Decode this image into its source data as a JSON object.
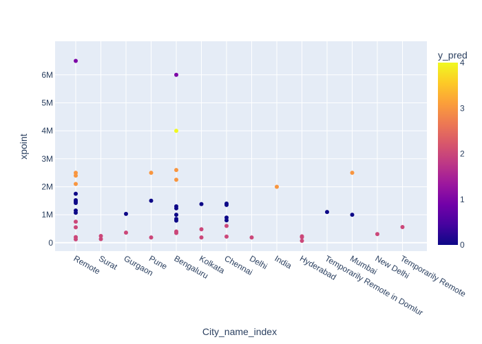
{
  "chart_data": {
    "type": "scatter",
    "title": "",
    "xlabel": "City_name_index",
    "ylabel": "xpoint",
    "categories": [
      "Remote",
      "Surat",
      "Gurgaon",
      "Pune",
      "Bengaluru",
      "Kolkata",
      "Chennai",
      "Delhi",
      "India",
      "Hyderabad",
      "Temporarily Remote in Domlur",
      "Mumbai",
      "New Delhi",
      "Temporarily Remote"
    ],
    "y_ticks": [
      0,
      1000000,
      2000000,
      3000000,
      4000000,
      5000000,
      6000000
    ],
    "y_tick_labels": [
      "0",
      "1M",
      "2M",
      "3M",
      "4M",
      "5M",
      "6M"
    ],
    "ylim": [
      -300000,
      7200000
    ],
    "grid": true,
    "colorbar": {
      "title": "y_pred",
      "range": [
        0,
        4
      ],
      "ticks": [
        0,
        1,
        2,
        3,
        4
      ],
      "colorscale": [
        "#0d0887",
        "#46039f",
        "#7201a8",
        "#9c179e",
        "#bd3786",
        "#d8576b",
        "#ed7953",
        "#fb9f3a",
        "#fdca26",
        "#f0f921"
      ]
    },
    "points": [
      {
        "x": "Remote",
        "y": 6500000,
        "c": 1
      },
      {
        "x": "Remote",
        "y": 2500000,
        "c": 3
      },
      {
        "x": "Remote",
        "y": 2400000,
        "c": 3
      },
      {
        "x": "Remote",
        "y": 2100000,
        "c": 3
      },
      {
        "x": "Remote",
        "y": 1750000,
        "c": 0
      },
      {
        "x": "Remote",
        "y": 1520000,
        "c": 0
      },
      {
        "x": "Remote",
        "y": 1470000,
        "c": 0
      },
      {
        "x": "Remote",
        "y": 1420000,
        "c": 0
      },
      {
        "x": "Remote",
        "y": 1150000,
        "c": 0
      },
      {
        "x": "Remote",
        "y": 1070000,
        "c": 0
      },
      {
        "x": "Remote",
        "y": 750000,
        "c": 2
      },
      {
        "x": "Remote",
        "y": 550000,
        "c": 2
      },
      {
        "x": "Remote",
        "y": 200000,
        "c": 2
      },
      {
        "x": "Remote",
        "y": 120000,
        "c": 2
      },
      {
        "x": "Surat",
        "y": 240000,
        "c": 2
      },
      {
        "x": "Surat",
        "y": 130000,
        "c": 2
      },
      {
        "x": "Gurgaon",
        "y": 1030000,
        "c": 0
      },
      {
        "x": "Gurgaon",
        "y": 360000,
        "c": 2
      },
      {
        "x": "Pune",
        "y": 2500000,
        "c": 3
      },
      {
        "x": "Pune",
        "y": 1500000,
        "c": 0
      },
      {
        "x": "Pune",
        "y": 190000,
        "c": 2
      },
      {
        "x": "Bengaluru",
        "y": 6000000,
        "c": 1
      },
      {
        "x": "Bengaluru",
        "y": 4000000,
        "c": 4
      },
      {
        "x": "Bengaluru",
        "y": 2600000,
        "c": 3
      },
      {
        "x": "Bengaluru",
        "y": 2250000,
        "c": 3
      },
      {
        "x": "Bengaluru",
        "y": 1300000,
        "c": 0
      },
      {
        "x": "Bengaluru",
        "y": 1230000,
        "c": 0
      },
      {
        "x": "Bengaluru",
        "y": 1000000,
        "c": 0
      },
      {
        "x": "Bengaluru",
        "y": 850000,
        "c": 0
      },
      {
        "x": "Bengaluru",
        "y": 790000,
        "c": 0
      },
      {
        "x": "Bengaluru",
        "y": 400000,
        "c": 2
      },
      {
        "x": "Bengaluru",
        "y": 350000,
        "c": 2
      },
      {
        "x": "Kolkata",
        "y": 1380000,
        "c": 0
      },
      {
        "x": "Kolkata",
        "y": 480000,
        "c": 2
      },
      {
        "x": "Kolkata",
        "y": 190000,
        "c": 2
      },
      {
        "x": "Chennai",
        "y": 1400000,
        "c": 0
      },
      {
        "x": "Chennai",
        "y": 1350000,
        "c": 0
      },
      {
        "x": "Chennai",
        "y": 900000,
        "c": 0
      },
      {
        "x": "Chennai",
        "y": 800000,
        "c": 0
      },
      {
        "x": "Chennai",
        "y": 600000,
        "c": 2
      },
      {
        "x": "Chennai",
        "y": 220000,
        "c": 2
      },
      {
        "x": "Delhi",
        "y": 190000,
        "c": 2
      },
      {
        "x": "India",
        "y": 2000000,
        "c": 3
      },
      {
        "x": "Hyderabad",
        "y": 230000,
        "c": 2
      },
      {
        "x": "Hyderabad",
        "y": 200000,
        "c": 2
      },
      {
        "x": "Hyderabad",
        "y": 70000,
        "c": 2
      },
      {
        "x": "Temporarily Remote in Domlur",
        "y": 1100000,
        "c": 0
      },
      {
        "x": "Mumbai",
        "y": 2500000,
        "c": 3
      },
      {
        "x": "Mumbai",
        "y": 1000000,
        "c": 0
      },
      {
        "x": "New Delhi",
        "y": 310000,
        "c": 2
      },
      {
        "x": "Temporarily Remote",
        "y": 560000,
        "c": 2
      }
    ]
  }
}
